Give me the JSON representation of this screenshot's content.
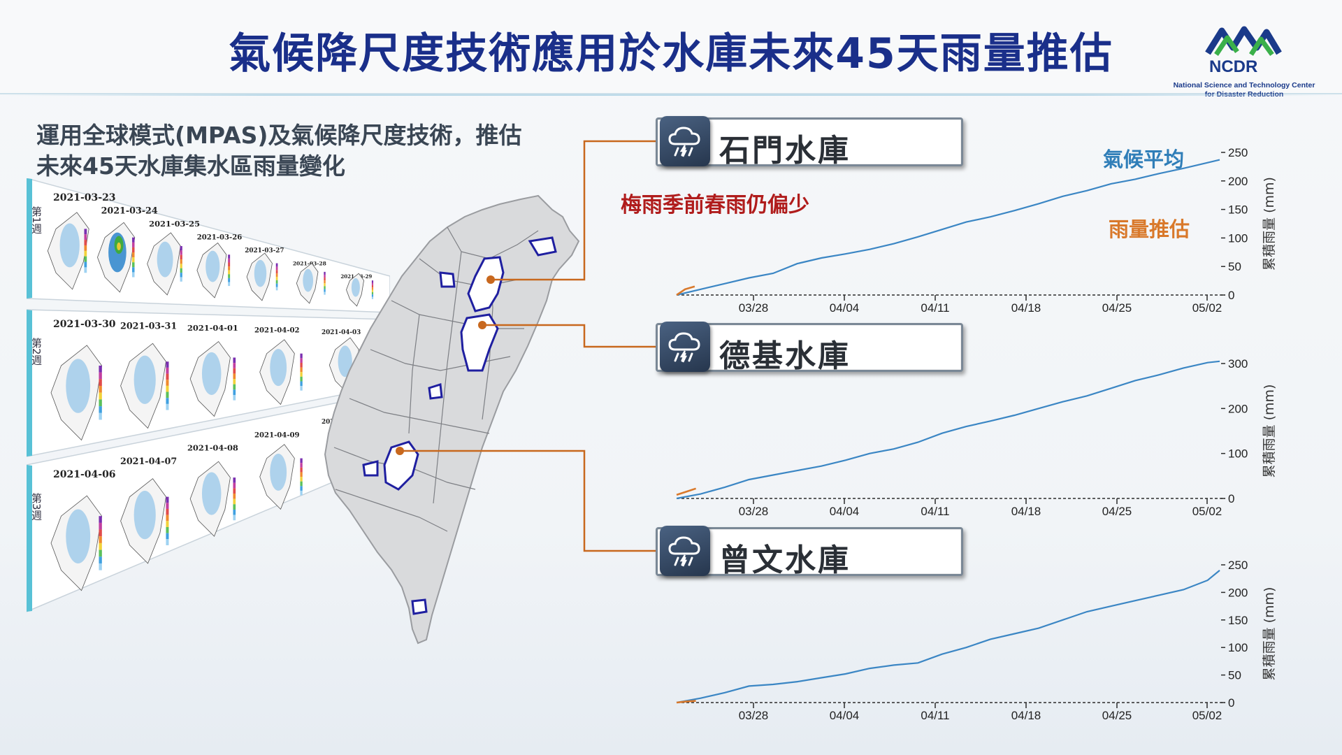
{
  "header": {
    "title": "氣候降尺度技術應用於水庫未來45天雨量推估",
    "logo_text": "NCDR",
    "logo_sub_line1": "National Science and Technology Center",
    "logo_sub_line2": "for Disaster Reduction"
  },
  "intro": {
    "line1": "運用全球模式(MPAS)及氣候降尺度技術，推估",
    "line2": "未來45天水庫集水區雨量變化"
  },
  "forecast_panels": {
    "weeks": [
      {
        "label": "第1週",
        "dates": [
          "2021-03-23",
          "2021-03-24",
          "2021-03-25",
          "2021-03-26",
          "2021-03-27",
          "2021-03-28",
          "2021-03-29"
        ]
      },
      {
        "label": "第2週",
        "dates": [
          "2021-03-30",
          "2021-03-31",
          "2021-04-01",
          "2021-04-02",
          "2021-04-03"
        ]
      },
      {
        "label": "第3週",
        "dates": [
          "2021-04-06",
          "2021-04-07",
          "2021-04-08",
          "2021-04-09",
          "2021-04-10"
        ]
      }
    ]
  },
  "note": "梅雨季前春雨仍偏少",
  "legend": {
    "climate": "氣候平均",
    "forecast": "雨量推估"
  },
  "colors": {
    "title": "#1a2f8a",
    "climate_line": "#3b86c4",
    "forecast_line": "#d9792b",
    "connector": "#c8681e",
    "note": "#b01c1c"
  },
  "reservoirs": [
    {
      "name": "石門水庫",
      "icon": "rain-cloud-icon"
    },
    {
      "name": "德基水庫",
      "icon": "rain-cloud-icon"
    },
    {
      "name": "曾文水庫",
      "icon": "rain-cloud-icon"
    }
  ],
  "chart_data": [
    {
      "type": "line",
      "reservoir": "石門水庫",
      "ylabel": "累積雨量 (mm)",
      "x_ticks": [
        "03/28",
        "04/04",
        "04/11",
        "04/18",
        "04/25",
        "05/02"
      ],
      "yticks": [
        0,
        50,
        100,
        150,
        200,
        250
      ],
      "ylim": [
        0,
        250
      ],
      "xlim": [
        0,
        45
      ],
      "series": [
        {
          "name": "氣候平均",
          "x": [
            0,
            2,
            4,
            6,
            8,
            10,
            12,
            14,
            16,
            18,
            20,
            22,
            24,
            26,
            28,
            30,
            32,
            34,
            36,
            38,
            40,
            42,
            44,
            45
          ],
          "values": [
            0,
            10,
            20,
            30,
            38,
            55,
            65,
            72,
            80,
            90,
            102,
            115,
            128,
            137,
            148,
            160,
            173,
            183,
            195,
            203,
            213,
            222,
            232,
            237
          ]
        },
        {
          "name": "雨量推估",
          "x": [
            0,
            0.7,
            1.5
          ],
          "values": [
            0,
            10,
            15
          ]
        }
      ]
    },
    {
      "type": "line",
      "reservoir": "德基水庫",
      "ylabel": "累積雨量 (mm)",
      "x_ticks": [
        "03/28",
        "04/04",
        "04/11",
        "04/18",
        "04/25",
        "05/02"
      ],
      "yticks": [
        0,
        100,
        200,
        300
      ],
      "ylim": [
        0,
        300
      ],
      "xlim": [
        0,
        45
      ],
      "series": [
        {
          "name": "氣候平均",
          "x": [
            0,
            2,
            4,
            6,
            8,
            10,
            12,
            14,
            16,
            18,
            20,
            22,
            24,
            26,
            28,
            30,
            32,
            34,
            36,
            38,
            40,
            42,
            44,
            45
          ],
          "values": [
            0,
            10,
            25,
            42,
            52,
            62,
            72,
            85,
            100,
            110,
            125,
            145,
            160,
            172,
            185,
            200,
            215,
            228,
            245,
            262,
            275,
            290,
            302,
            305
          ]
        },
        {
          "name": "雨量推估",
          "x": [
            0,
            0.8,
            1.6
          ],
          "values": [
            8,
            15,
            22
          ]
        }
      ]
    },
    {
      "type": "line",
      "reservoir": "曾文水庫",
      "ylabel": "累積雨量 (mm)",
      "x_ticks": [
        "03/28",
        "04/04",
        "04/11",
        "04/18",
        "04/25",
        "05/02"
      ],
      "yticks": [
        0,
        50,
        100,
        150,
        200,
        250
      ],
      "ylim": [
        0,
        250
      ],
      "xlim": [
        0,
        45
      ],
      "series": [
        {
          "name": "氣候平均",
          "x": [
            0,
            2,
            4,
            6,
            8,
            10,
            12,
            14,
            16,
            18,
            20,
            22,
            24,
            26,
            28,
            30,
            32,
            34,
            36,
            38,
            40,
            42,
            44,
            45
          ],
          "values": [
            0,
            8,
            18,
            30,
            33,
            38,
            45,
            52,
            62,
            68,
            72,
            88,
            100,
            115,
            125,
            135,
            150,
            165,
            175,
            185,
            195,
            205,
            222,
            240
          ]
        },
        {
          "name": "雨量推估",
          "x": [
            0,
            0.8,
            1.6
          ],
          "values": [
            0,
            2,
            3
          ]
        }
      ]
    }
  ]
}
